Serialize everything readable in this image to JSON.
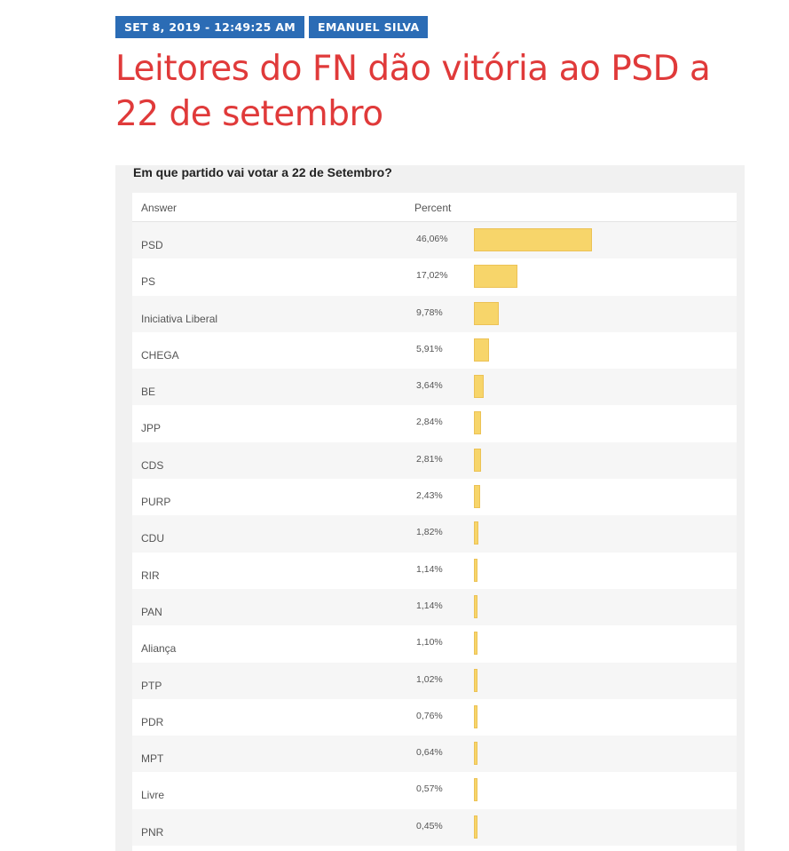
{
  "post": {
    "date": "SET 8, 2019 - 12:49:25 AM",
    "author": "EMANUEL SILVA",
    "title": "Leitores do FN dão vitória ao PSD a 22 de setembro"
  },
  "poll": {
    "question": "Em que partido vai votar a 22 de Setembro?",
    "headers": {
      "answer": "Answer",
      "percent": "Percent"
    },
    "colors": {
      "bar": "#f7d56a",
      "title": "#e03a3a",
      "badge": "#2b6cb5"
    }
  },
  "chart_data": {
    "type": "bar",
    "orientation": "horizontal",
    "title": "Em que partido vai votar a 22 de Setembro?",
    "categories": [
      "PSD",
      "PS",
      "Iniciativa Liberal",
      "CHEGA",
      "BE",
      "JPP",
      "CDS",
      "PURP",
      "CDU",
      "RIR",
      "PAN",
      "Aliança",
      "PTP",
      "PDR",
      "MPT",
      "Livre",
      "PNR"
    ],
    "values": [
      46.06,
      17.02,
      9.78,
      5.91,
      3.64,
      2.84,
      2.81,
      2.43,
      1.82,
      1.14,
      1.14,
      1.1,
      1.02,
      0.76,
      0.64,
      0.57,
      0.45
    ],
    "labels": [
      "46,06%",
      "17,02%",
      "9,78%",
      "5,91%",
      "3,64%",
      "2,84%",
      "2,81%",
      "2,43%",
      "1,82%",
      "1,14%",
      "1,14%",
      "1,10%",
      "1,02%",
      "0,76%",
      "0,64%",
      "0,57%",
      "0,45%"
    ],
    "unit": "%"
  }
}
